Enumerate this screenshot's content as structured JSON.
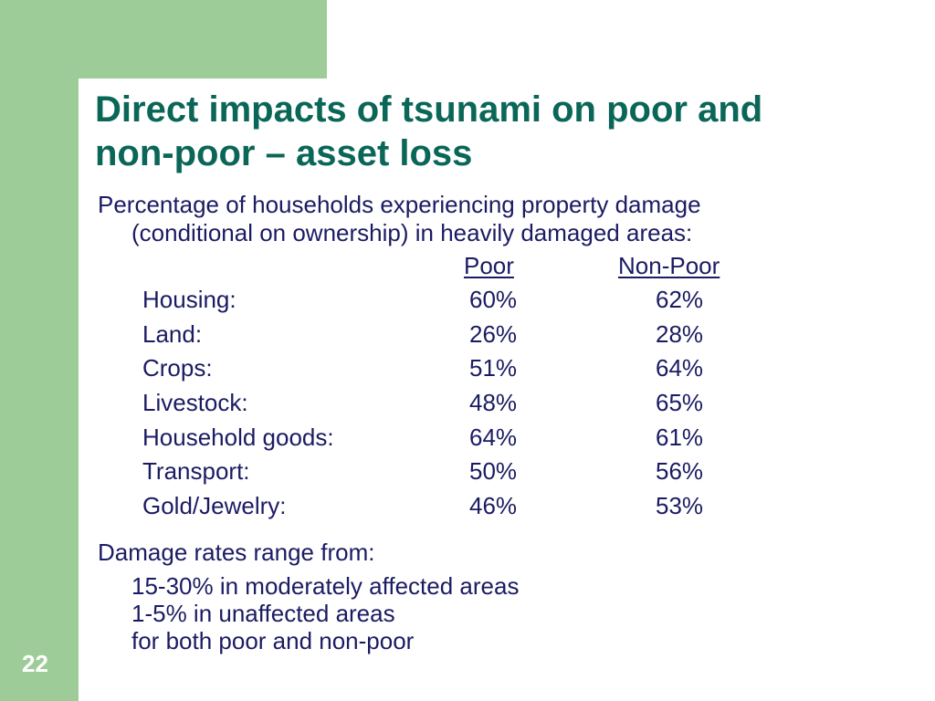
{
  "slide": {
    "title_line1": "Direct impacts of tsunami on poor and",
    "title_line2": "non-poor – asset loss",
    "intro_line1": "Percentage of households experiencing property damage",
    "intro_line2": "(conditional on ownership) in heavily damaged areas:",
    "columns": {
      "poor": "Poor",
      "non_poor": "Non-Poor"
    },
    "rows": [
      {
        "label": "Housing:",
        "poor": "60%",
        "non_poor": "62%"
      },
      {
        "label": "Land:",
        "poor": "26%",
        "non_poor": "28%"
      },
      {
        "label": "Crops:",
        "poor": "51%",
        "non_poor": "64%"
      },
      {
        "label": "Livestock:",
        "poor": "48%",
        "non_poor": "65%"
      },
      {
        "label": "Household goods:",
        "poor": "64%",
        "non_poor": "61%"
      },
      {
        "label": "Transport:",
        "poor": "50%",
        "non_poor": "56%"
      },
      {
        "label": "Gold/Jewelry:",
        "poor": "46%",
        "non_poor": "53%"
      }
    ],
    "damage_heading": "Damage rates range from:",
    "damage_lines": [
      "15-30% in moderately affected areas",
      "1-5% in unaffected areas",
      "for both poor and non-poor"
    ],
    "slide_number": "22"
  },
  "colors": {
    "frame_green": "#9dcc98",
    "title_color": "#0a6657",
    "body_color": "#1b1b63"
  }
}
